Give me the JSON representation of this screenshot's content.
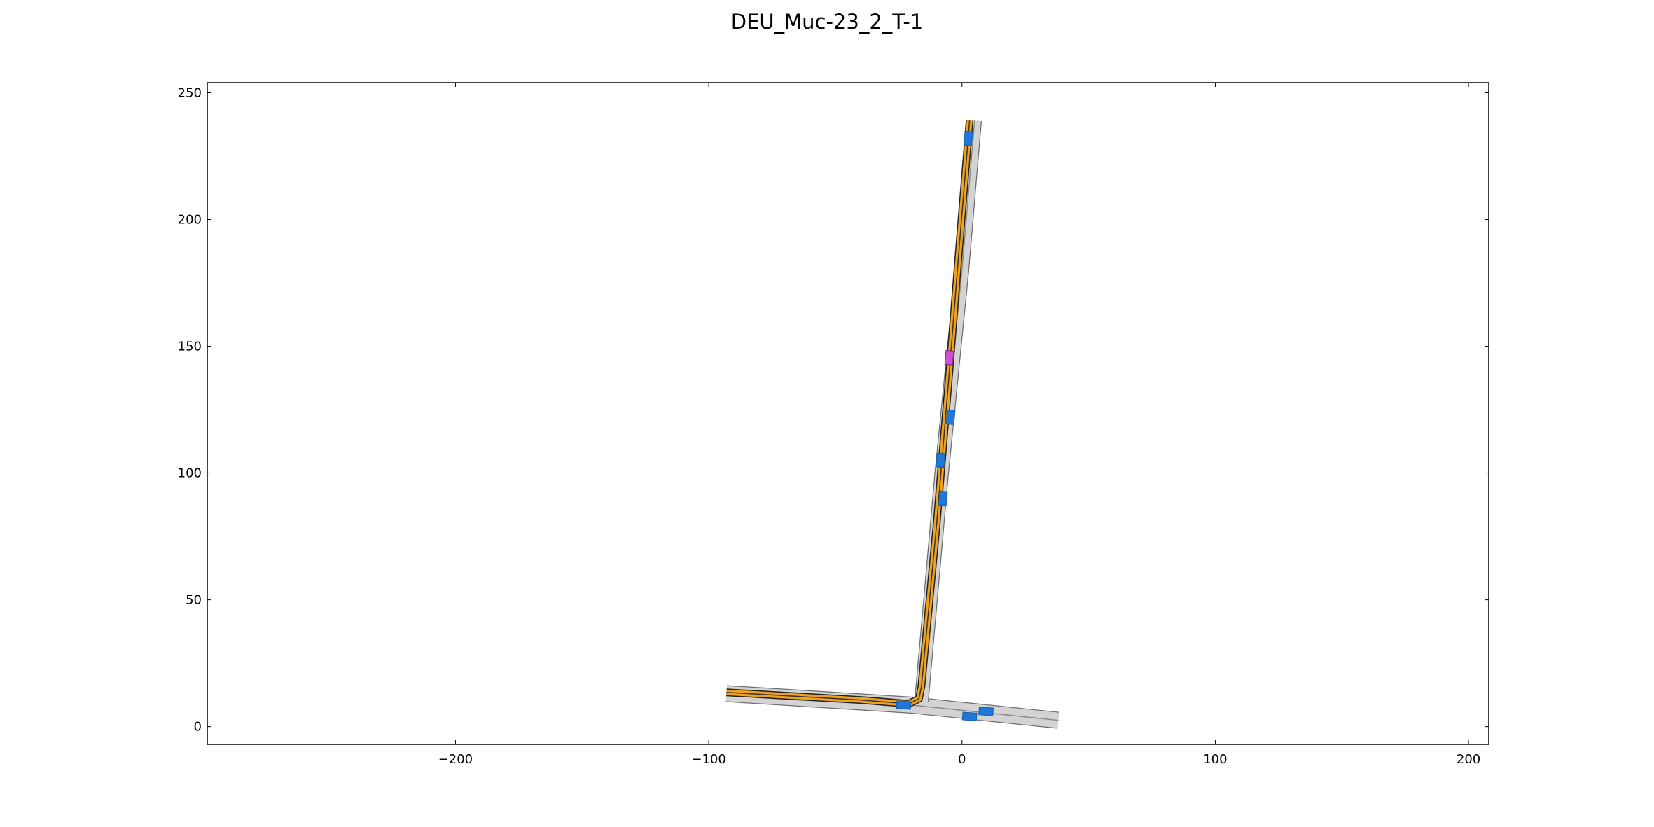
{
  "chart_data": {
    "type": "scatter",
    "title": "DEU_Muc-23_2_T-1",
    "xlabel": "",
    "ylabel": "",
    "xlim": [
      -298,
      208
    ],
    "ylim": [
      -7,
      254
    ],
    "x_ticks": [
      -200,
      -100,
      0,
      100,
      200
    ],
    "y_ticks": [
      0,
      50,
      100,
      150,
      200,
      250
    ],
    "x_tick_labels": [
      "−200",
      "−100",
      "0",
      "100",
      "200"
    ],
    "y_tick_labels": [
      "0",
      "50",
      "100",
      "150",
      "200",
      "250"
    ],
    "grid": false,
    "legend": "none",
    "colors": {
      "road_fill": "#d3d3d3",
      "road_edge": "#6e6e6e",
      "lane_marking": "#333333",
      "planned_route": "#f0a21e",
      "vehicle": "#1e78d8",
      "ego_vehicle": "#d050d0"
    },
    "roads": [
      {
        "name": "horizontal-road",
        "width": 6,
        "points": [
          [
            -93,
            13
          ],
          [
            -20,
            8.5
          ],
          [
            38,
            2.5
          ]
        ]
      },
      {
        "name": "vertical-road",
        "width": 5,
        "points": [
          [
            -16,
            10
          ],
          [
            -8,
            100
          ],
          [
            0,
            180
          ],
          [
            5,
            239
          ]
        ]
      }
    ],
    "route": {
      "points": [
        [
          -93,
          13.5
        ],
        [
          -40,
          10.5
        ],
        [
          -21,
          9
        ],
        [
          -17,
          11
        ],
        [
          -16,
          16
        ],
        [
          -10,
          80
        ],
        [
          -5,
          140
        ],
        [
          -1,
          190
        ],
        [
          3,
          239
        ]
      ]
    },
    "vehicles": [
      {
        "x": 2.5,
        "y": 232,
        "angle": 85
      },
      {
        "x": -4.5,
        "y": 122,
        "angle": 85
      },
      {
        "x": -8.5,
        "y": 105,
        "angle": 85
      },
      {
        "x": -7.5,
        "y": 90,
        "angle": 85
      },
      {
        "x": -23,
        "y": 8.5,
        "angle": -4
      },
      {
        "x": 3,
        "y": 4,
        "angle": -4
      },
      {
        "x": 9.5,
        "y": 6,
        "angle": -4
      }
    ],
    "ego_vehicle": {
      "x": -5,
      "y": 145.5,
      "angle": 85
    }
  }
}
